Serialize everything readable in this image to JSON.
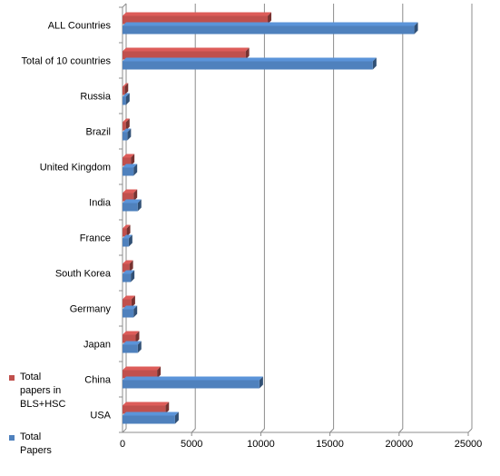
{
  "chart_data": {
    "type": "bar",
    "orientation": "horizontal",
    "categories": [
      "ALL Countries",
      "Total of 10 countries",
      "Russia",
      "Brazil",
      "United Kingdom",
      "India",
      "France",
      "South Korea",
      "Germany",
      "Japan",
      "China",
      "USA"
    ],
    "series": [
      {
        "name": "Total papers in BLS+HSC",
        "color": "#c0504d",
        "values": [
          10500,
          8900,
          150,
          250,
          600,
          800,
          300,
          500,
          650,
          950,
          2500,
          3100
        ]
      },
      {
        "name": "Total Papers",
        "color": "#4f81bd",
        "values": [
          21100,
          18100,
          250,
          350,
          800,
          1100,
          450,
          600,
          800,
          1100,
          9900,
          3800
        ]
      }
    ],
    "xlim": [
      0,
      25000
    ],
    "x_ticks": [
      "0",
      "5000",
      "10000",
      "15000",
      "20000",
      "25000"
    ],
    "grid": true,
    "legend_position": "bottom-left"
  }
}
